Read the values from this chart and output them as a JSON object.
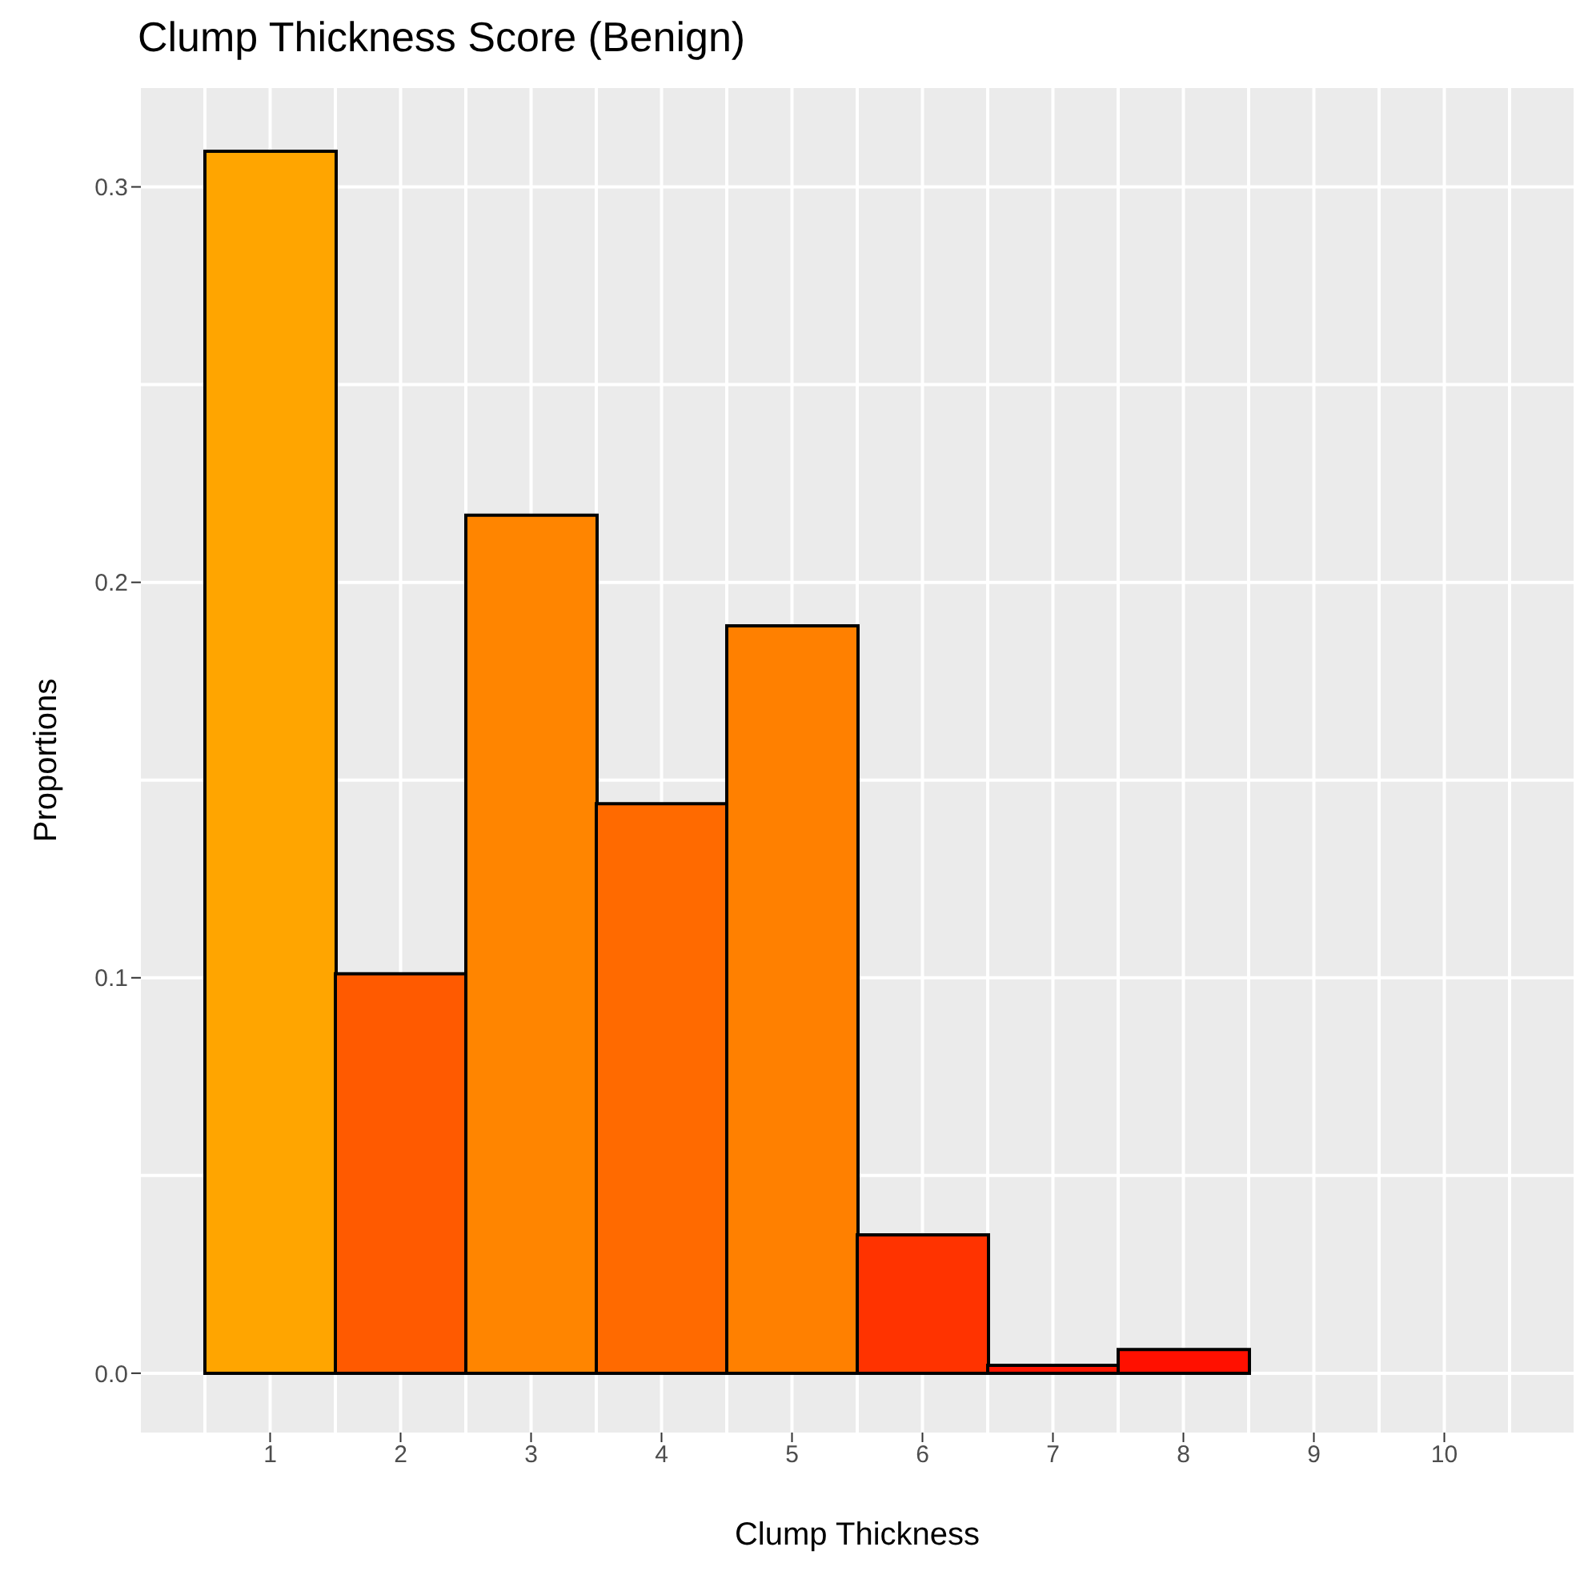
{
  "chart_data": {
    "type": "bar",
    "title": "Clump Thickness Score (Benign)",
    "xlabel": "Clump Thickness",
    "ylabel": "Proportions",
    "categories": [
      "1",
      "2",
      "3",
      "4",
      "5",
      "6",
      "7",
      "8",
      "9",
      "10"
    ],
    "values": [
      0.309,
      0.101,
      0.217,
      0.144,
      0.189,
      0.035,
      0.002,
      0.006,
      0,
      0
    ],
    "colors": [
      "#ffa500",
      "#ff5a00",
      "#ff8500",
      "#ff6a00",
      "#ff8000",
      "#ff3300",
      "#ff1500",
      "#ff1000",
      "#ff0000",
      "#ff0000"
    ],
    "ylim": [
      -0.015,
      0.325
    ],
    "yticks": [
      {
        "value": 0,
        "label": "0.0"
      },
      0.1,
      0.2,
      0.3
    ],
    "grid": true
  }
}
